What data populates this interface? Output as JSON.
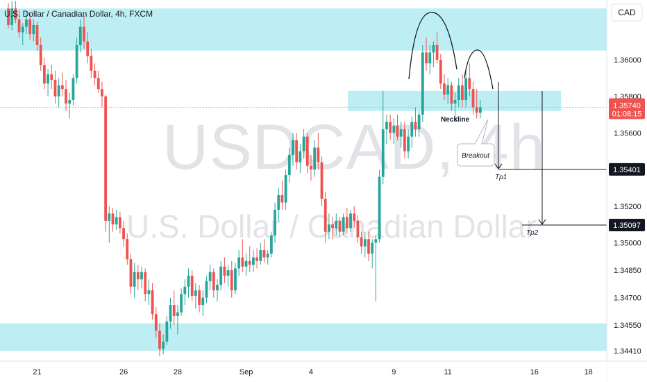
{
  "header": {
    "title": "U.S. Dollar / Canadian Dollar, 4h, FXCM",
    "currency_button": "CAD"
  },
  "watermark": {
    "symbol": "USDCAD, 4h",
    "name": "U.S. Dollar / Canadian Dollar"
  },
  "colors": {
    "up": "#26a69a",
    "down": "#ef5350",
    "zone": "#b2ebf2",
    "price_label": "#ef5350",
    "tp_label": "#131722",
    "current_line": "#f7a4a4"
  },
  "chart_data": {
    "type": "candlestick",
    "title": "U.S. Dollar / Canadian Dollar, 4h, FXCM",
    "xlabel": "",
    "ylabel": "",
    "ylim": [
      1.3437,
      1.3635
    ],
    "x_ticks": [
      "21",
      "26",
      "28",
      "Sep",
      "4",
      "9",
      "11",
      "16",
      "18"
    ],
    "x_tick_bar_index": [
      8,
      32,
      47,
      66,
      84,
      107,
      122,
      146,
      161
    ],
    "y_ticks": [
      1.3441,
      1.3455,
      1.347,
      1.3485,
      1.35,
      1.352,
      1.356,
      1.358,
      1.36
    ],
    "y_tick_labels": [
      "1.34410",
      "1.34550",
      "1.34700",
      "1.34850",
      "1.35000",
      "1.35200",
      "1.35600",
      "1.35800",
      "1.36000"
    ],
    "current_price": {
      "value": 1.3574,
      "label": "1.35740",
      "countdown": "01:08:15"
    },
    "levels": [
      {
        "name": "Tp1",
        "value": 1.35401,
        "label": "1.35401"
      },
      {
        "name": "Tp2",
        "value": 1.35097,
        "label": "1.35097"
      }
    ],
    "zones": [
      {
        "from": 1.3605,
        "to": 1.3628
      },
      {
        "from": 1.3572,
        "to": 1.3583
      },
      {
        "from": 1.3441,
        "to": 1.3456
      }
    ],
    "annotations": {
      "neckline": "Neckline",
      "breakout": "Breakout",
      "tp1": "Tp1",
      "tp2": "Tp2"
    },
    "candles": [
      [
        1.3628,
        1.3631,
        1.3617,
        1.3619
      ],
      [
        1.3619,
        1.3632,
        1.3616,
        1.3628
      ],
      [
        1.3628,
        1.3632,
        1.362,
        1.3622
      ],
      [
        1.3622,
        1.3627,
        1.3612,
        1.3615
      ],
      [
        1.3615,
        1.362,
        1.3608,
        1.3618
      ],
      [
        1.3618,
        1.3626,
        1.3614,
        1.3622
      ],
      [
        1.3622,
        1.3625,
        1.3611,
        1.3614
      ],
      [
        1.3614,
        1.3622,
        1.361,
        1.3619
      ],
      [
        1.3619,
        1.3621,
        1.3605,
        1.3608
      ],
      [
        1.3608,
        1.3612,
        1.3594,
        1.3597
      ],
      [
        1.3597,
        1.3601,
        1.3584,
        1.3587
      ],
      [
        1.3587,
        1.3595,
        1.358,
        1.3592
      ],
      [
        1.3592,
        1.3597,
        1.3584,
        1.3589
      ],
      [
        1.3589,
        1.3594,
        1.3576,
        1.358
      ],
      [
        1.358,
        1.359,
        1.3574,
        1.3586
      ],
      [
        1.3586,
        1.3593,
        1.358,
        1.3584
      ],
      [
        1.3584,
        1.3589,
        1.3572,
        1.3576
      ],
      [
        1.3576,
        1.3582,
        1.3568,
        1.3578
      ],
      [
        1.3578,
        1.3592,
        1.3575,
        1.359
      ],
      [
        1.359,
        1.3612,
        1.3587,
        1.3608
      ],
      [
        1.3608,
        1.3622,
        1.3604,
        1.3618
      ],
      [
        1.3618,
        1.3624,
        1.3606,
        1.361
      ],
      [
        1.361,
        1.3615,
        1.3598,
        1.3602
      ],
      [
        1.3602,
        1.3606,
        1.359,
        1.3594
      ],
      [
        1.3594,
        1.3598,
        1.3586,
        1.359
      ],
      [
        1.359,
        1.3594,
        1.3582,
        1.3584
      ],
      [
        1.3584,
        1.3588,
        1.3574,
        1.358
      ],
      [
        1.358,
        1.3581,
        1.3506,
        1.3512
      ],
      [
        1.3512,
        1.352,
        1.35,
        1.3516
      ],
      [
        1.3516,
        1.3519,
        1.3506,
        1.351
      ],
      [
        1.351,
        1.3518,
        1.3507,
        1.3514
      ],
      [
        1.3514,
        1.3517,
        1.3505,
        1.3508
      ],
      [
        1.3508,
        1.3512,
        1.3498,
        1.3502
      ],
      [
        1.3502,
        1.3505,
        1.3488,
        1.3491
      ],
      [
        1.3491,
        1.3494,
        1.3472,
        1.3476
      ],
      [
        1.3476,
        1.3489,
        1.347,
        1.3484
      ],
      [
        1.3484,
        1.3488,
        1.3474,
        1.348
      ],
      [
        1.348,
        1.3487,
        1.3475,
        1.3484
      ],
      [
        1.3484,
        1.3486,
        1.3468,
        1.3472
      ],
      [
        1.3472,
        1.348,
        1.3466,
        1.3474
      ],
      [
        1.3474,
        1.3478,
        1.3458,
        1.3461
      ],
      [
        1.3461,
        1.3465,
        1.3448,
        1.3452
      ],
      [
        1.3452,
        1.3456,
        1.3438,
        1.3442
      ],
      [
        1.3442,
        1.345,
        1.3439,
        1.3446
      ],
      [
        1.3446,
        1.346,
        1.3444,
        1.3457
      ],
      [
        1.3457,
        1.347,
        1.3453,
        1.3466
      ],
      [
        1.3466,
        1.3474,
        1.3455,
        1.346
      ],
      [
        1.346,
        1.3466,
        1.345,
        1.3462
      ],
      [
        1.3462,
        1.3475,
        1.346,
        1.3472
      ],
      [
        1.3472,
        1.348,
        1.3466,
        1.3476
      ],
      [
        1.3476,
        1.3486,
        1.347,
        1.3482
      ],
      [
        1.3482,
        1.3485,
        1.3468,
        1.3471
      ],
      [
        1.3471,
        1.3478,
        1.3464,
        1.3474
      ],
      [
        1.3474,
        1.3477,
        1.3462,
        1.3466
      ],
      [
        1.3466,
        1.3474,
        1.346,
        1.347
      ],
      [
        1.347,
        1.3482,
        1.3467,
        1.3479
      ],
      [
        1.3479,
        1.3488,
        1.3474,
        1.3484
      ],
      [
        1.3484,
        1.3486,
        1.347,
        1.3474
      ],
      [
        1.3474,
        1.348,
        1.3468,
        1.3477
      ],
      [
        1.3477,
        1.349,
        1.3474,
        1.3487
      ],
      [
        1.3487,
        1.3492,
        1.3478,
        1.3482
      ],
      [
        1.3482,
        1.3488,
        1.3476,
        1.3485
      ],
      [
        1.3485,
        1.349,
        1.347,
        1.3474
      ],
      [
        1.3474,
        1.3489,
        1.3472,
        1.3486
      ],
      [
        1.3486,
        1.3496,
        1.3482,
        1.3492
      ],
      [
        1.3492,
        1.3502,
        1.3484,
        1.3487
      ],
      [
        1.3487,
        1.3494,
        1.3482,
        1.349
      ],
      [
        1.349,
        1.3498,
        1.3484,
        1.3488
      ],
      [
        1.3488,
        1.3496,
        1.3484,
        1.3492
      ],
      [
        1.3492,
        1.3497,
        1.3486,
        1.349
      ],
      [
        1.349,
        1.35,
        1.3488,
        1.3496
      ],
      [
        1.3496,
        1.3502,
        1.3489,
        1.3492
      ],
      [
        1.3492,
        1.3496,
        1.3488,
        1.3494
      ],
      [
        1.3494,
        1.3506,
        1.3492,
        1.3504
      ],
      [
        1.3504,
        1.3522,
        1.35,
        1.3518
      ],
      [
        1.3518,
        1.353,
        1.3512,
        1.3526
      ],
      [
        1.3526,
        1.3534,
        1.3518,
        1.3522
      ],
      [
        1.3522,
        1.354,
        1.3518,
        1.3537
      ],
      [
        1.3537,
        1.3552,
        1.3533,
        1.3548
      ],
      [
        1.3548,
        1.356,
        1.3542,
        1.3556
      ],
      [
        1.3556,
        1.356,
        1.354,
        1.3544
      ],
      [
        1.3544,
        1.3554,
        1.3538,
        1.355
      ],
      [
        1.355,
        1.3562,
        1.3546,
        1.3558
      ],
      [
        1.3558,
        1.356,
        1.3538,
        1.3542
      ],
      [
        1.3542,
        1.3548,
        1.3534,
        1.354
      ],
      [
        1.354,
        1.3556,
        1.3536,
        1.3552
      ],
      [
        1.3552,
        1.356,
        1.354,
        1.3544
      ],
      [
        1.3544,
        1.3547,
        1.352,
        1.3524
      ],
      [
        1.3524,
        1.3528,
        1.35,
        1.3506
      ],
      [
        1.3506,
        1.3516,
        1.3502,
        1.351
      ],
      [
        1.351,
        1.3514,
        1.3502,
        1.3508
      ],
      [
        1.3508,
        1.3516,
        1.3504,
        1.3512
      ],
      [
        1.3512,
        1.3514,
        1.3503,
        1.3506
      ],
      [
        1.3506,
        1.3516,
        1.3504,
        1.3514
      ],
      [
        1.3514,
        1.3519,
        1.3505,
        1.3508
      ],
      [
        1.3508,
        1.3518,
        1.3506,
        1.3516
      ],
      [
        1.3516,
        1.352,
        1.3508,
        1.3512
      ],
      [
        1.3512,
        1.3515,
        1.35,
        1.3503
      ],
      [
        1.3503,
        1.3506,
        1.3494,
        1.3498
      ],
      [
        1.3498,
        1.3506,
        1.3492,
        1.3502
      ],
      [
        1.3502,
        1.3506,
        1.349,
        1.3494
      ],
      [
        1.3494,
        1.3502,
        1.3486,
        1.35
      ],
      [
        1.35,
        1.3504,
        1.3468,
        1.3502
      ],
      [
        1.3502,
        1.354,
        1.35,
        1.3536
      ],
      [
        1.3536,
        1.3583,
        1.3532,
        1.3562
      ],
      [
        1.3562,
        1.357,
        1.3554,
        1.3566
      ],
      [
        1.3566,
        1.357,
        1.3556,
        1.356
      ],
      [
        1.356,
        1.3568,
        1.3554,
        1.3564
      ],
      [
        1.3564,
        1.357,
        1.3556,
        1.3558
      ],
      [
        1.3558,
        1.3566,
        1.3552,
        1.3562
      ],
      [
        1.3562,
        1.3566,
        1.3546,
        1.355
      ],
      [
        1.355,
        1.3562,
        1.3546,
        1.3558
      ],
      [
        1.3558,
        1.3569,
        1.3552,
        1.3566
      ],
      [
        1.3566,
        1.3574,
        1.3558,
        1.3562
      ],
      [
        1.3562,
        1.3572,
        1.3558,
        1.357
      ],
      [
        1.357,
        1.3608,
        1.3566,
        1.3604
      ],
      [
        1.3604,
        1.3612,
        1.3594,
        1.3598
      ],
      [
        1.3598,
        1.3608,
        1.3592,
        1.3604
      ],
      [
        1.3604,
        1.361,
        1.3596,
        1.3608
      ],
      [
        1.3608,
        1.3615,
        1.3598,
        1.36
      ],
      [
        1.36,
        1.3603,
        1.3584,
        1.3587
      ],
      [
        1.3587,
        1.3592,
        1.3578,
        1.3581
      ],
      [
        1.3581,
        1.359,
        1.3576,
        1.3586
      ],
      [
        1.3586,
        1.3588,
        1.3572,
        1.3576
      ],
      [
        1.3576,
        1.3582,
        1.3566,
        1.3578
      ],
      [
        1.3578,
        1.359,
        1.3574,
        1.3586
      ],
      [
        1.3586,
        1.3592,
        1.3574,
        1.3578
      ],
      [
        1.3578,
        1.3594,
        1.3574,
        1.359
      ],
      [
        1.359,
        1.3598,
        1.358,
        1.3584
      ],
      [
        1.3584,
        1.3588,
        1.357,
        1.3574
      ],
      [
        1.3574,
        1.3584,
        1.3568,
        1.3571
      ],
      [
        1.3571,
        1.3578,
        1.3568,
        1.3574
      ]
    ]
  }
}
